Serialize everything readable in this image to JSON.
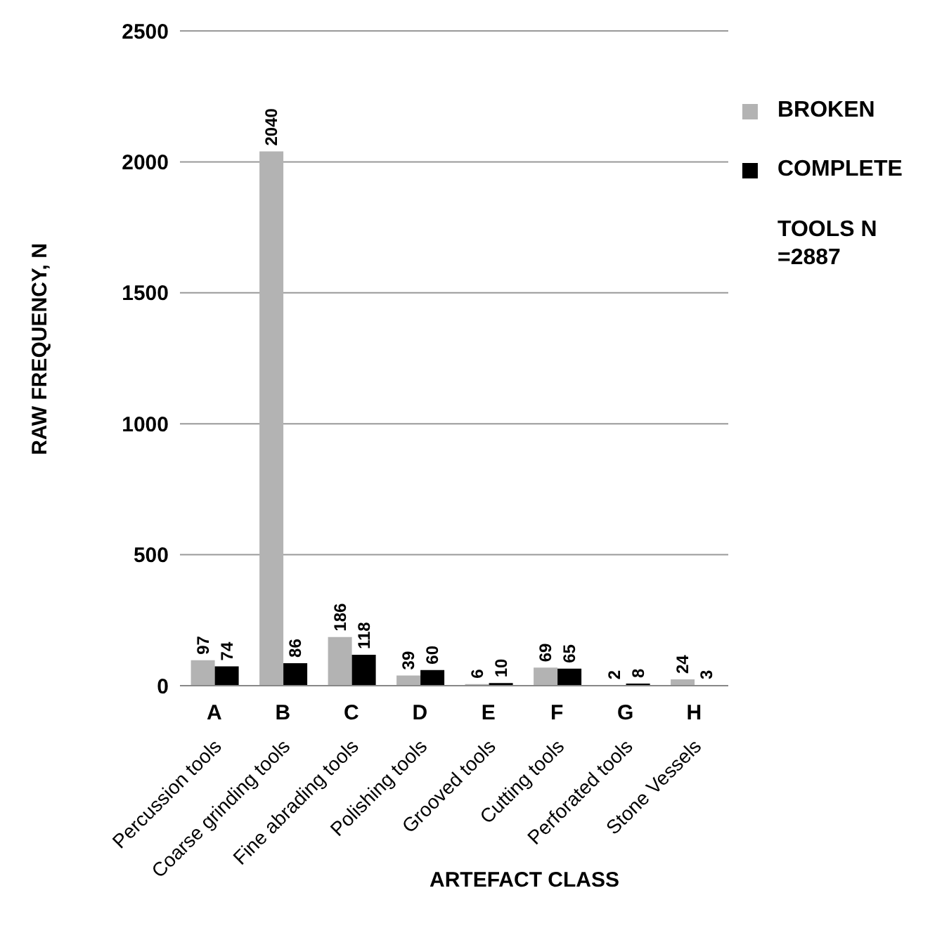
{
  "chart_data": {
    "type": "bar",
    "xlabel": "ARTEFACT CLASS",
    "ylabel": "RAW FREQUENCY, N",
    "categories": [
      "Percussion tools",
      "Coarse grinding tools",
      "Fine abrading tools",
      "Polishing tools",
      "Grooved tools",
      "Cutting tools",
      "Perforated tools",
      "Stone Vessels"
    ],
    "series": [
      {
        "name": "BROKEN",
        "color": "#b3b3b3",
        "values": [
          97,
          2040,
          186,
          39,
          6,
          69,
          2,
          24
        ]
      },
      {
        "name": "COMPLETE",
        "color": "#000000",
        "values": [
          74,
          86,
          118,
          60,
          10,
          65,
          8,
          3
        ]
      }
    ],
    "ylim": [
      0,
      2500
    ],
    "yticks": [
      0,
      500,
      1000,
      1500,
      2000,
      2500
    ],
    "grid": "y",
    "legend": "top right",
    "data_labels": true,
    "annotations": [
      "TOOLS N =2887",
      "A",
      "B",
      "C",
      "D",
      "E",
      "F",
      "G",
      "H"
    ]
  }
}
